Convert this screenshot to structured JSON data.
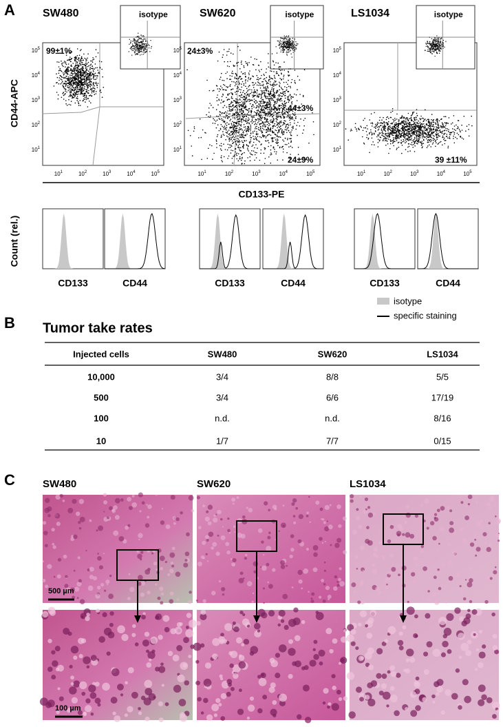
{
  "panel_a": {
    "letter": "A",
    "cell_lines": [
      "SW480",
      "SW620",
      "LS1034"
    ],
    "inset_label": "isotype",
    "y_axis_label": "CD44-APC",
    "x_axis_label": "CD133-PE",
    "count_label": "Count (rel.)",
    "tick_base": "10",
    "tick_exponents": [
      "1",
      "2",
      "3",
      "4",
      "5"
    ],
    "quadrant_labels": [
      [
        "99±1%"
      ],
      [
        "24±3%",
        "44±3%",
        "24±9%"
      ],
      [
        "39 ±11%"
      ]
    ],
    "histogram_labels": [
      "CD133",
      "CD44"
    ],
    "legend": [
      "isotype",
      "specific staining"
    ]
  },
  "panel_b": {
    "letter": "B",
    "title": "Tumor take rates",
    "table": {
      "header": [
        "Injected cells",
        "SW480",
        "SW620",
        "LS1034"
      ],
      "rows": [
        [
          "10,000",
          "3/4",
          "8/8",
          "5/5"
        ],
        [
          "500",
          "3/4",
          "6/6",
          "17/19"
        ],
        [
          "100",
          "n.d.",
          "n.d.",
          "8/16"
        ],
        [
          "10",
          "1/7",
          "7/7",
          "0/15"
        ]
      ]
    }
  },
  "panel_c": {
    "letter": "C",
    "cell_lines": [
      "SW480",
      "SW620",
      "LS1034"
    ],
    "scale_bars": [
      "500 µm",
      "100 µm"
    ]
  }
}
